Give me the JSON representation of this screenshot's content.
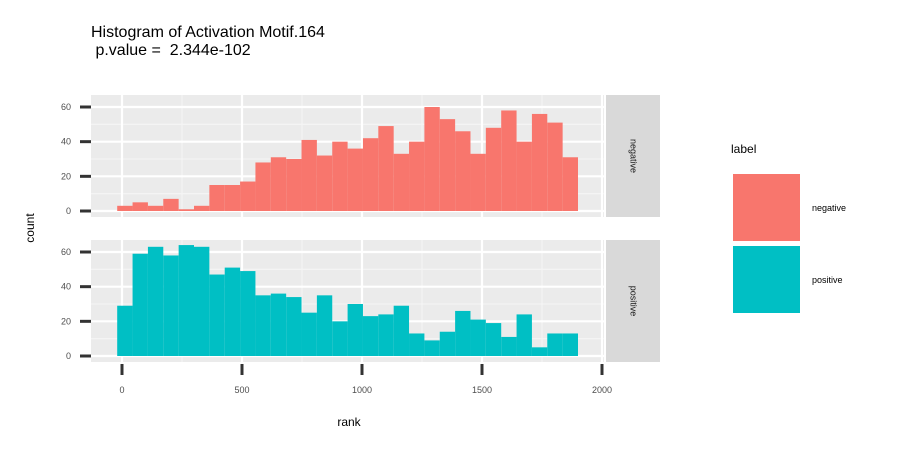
{
  "chart_data": {
    "type": "bar",
    "title": "Histogram of Activation Motif.164",
    "subtitle": " p.value =  2.344e-102",
    "xlabel": "rank",
    "ylabel": "count",
    "xlim": [
      -60,
      2000
    ],
    "ylim": [
      0,
      66
    ],
    "x_ticks": [
      0,
      500,
      1000,
      1500,
      2000
    ],
    "y_ticks": [
      0,
      20,
      40,
      60
    ],
    "bin_width": 64,
    "bin_starts": [
      -20,
      44,
      108,
      172,
      236,
      300,
      364,
      428,
      492,
      556,
      620,
      684,
      748,
      812,
      876,
      940,
      1004,
      1068,
      1132,
      1196,
      1260,
      1324,
      1388,
      1452,
      1516,
      1580,
      1644,
      1708,
      1772,
      1836
    ],
    "legend_title": "label",
    "legend_position": "right",
    "grid": true,
    "series": [
      {
        "name": "negative",
        "color": "#F8766D",
        "values": [
          3,
          5,
          3,
          7,
          1,
          3,
          15,
          15,
          17,
          28,
          31,
          30,
          41,
          32,
          40,
          36,
          42,
          49,
          33,
          40,
          60,
          53,
          46,
          33,
          48,
          58,
          40,
          56,
          51,
          31
        ]
      },
      {
        "name": "positive",
        "color": "#00BFC4",
        "values": [
          29,
          59,
          63,
          58,
          64,
          63,
          47,
          51,
          49,
          35,
          36,
          34,
          25,
          35,
          20,
          30,
          23,
          24,
          29,
          13,
          9,
          14,
          26,
          21,
          19,
          11,
          24,
          5,
          13,
          13
        ]
      }
    ]
  }
}
